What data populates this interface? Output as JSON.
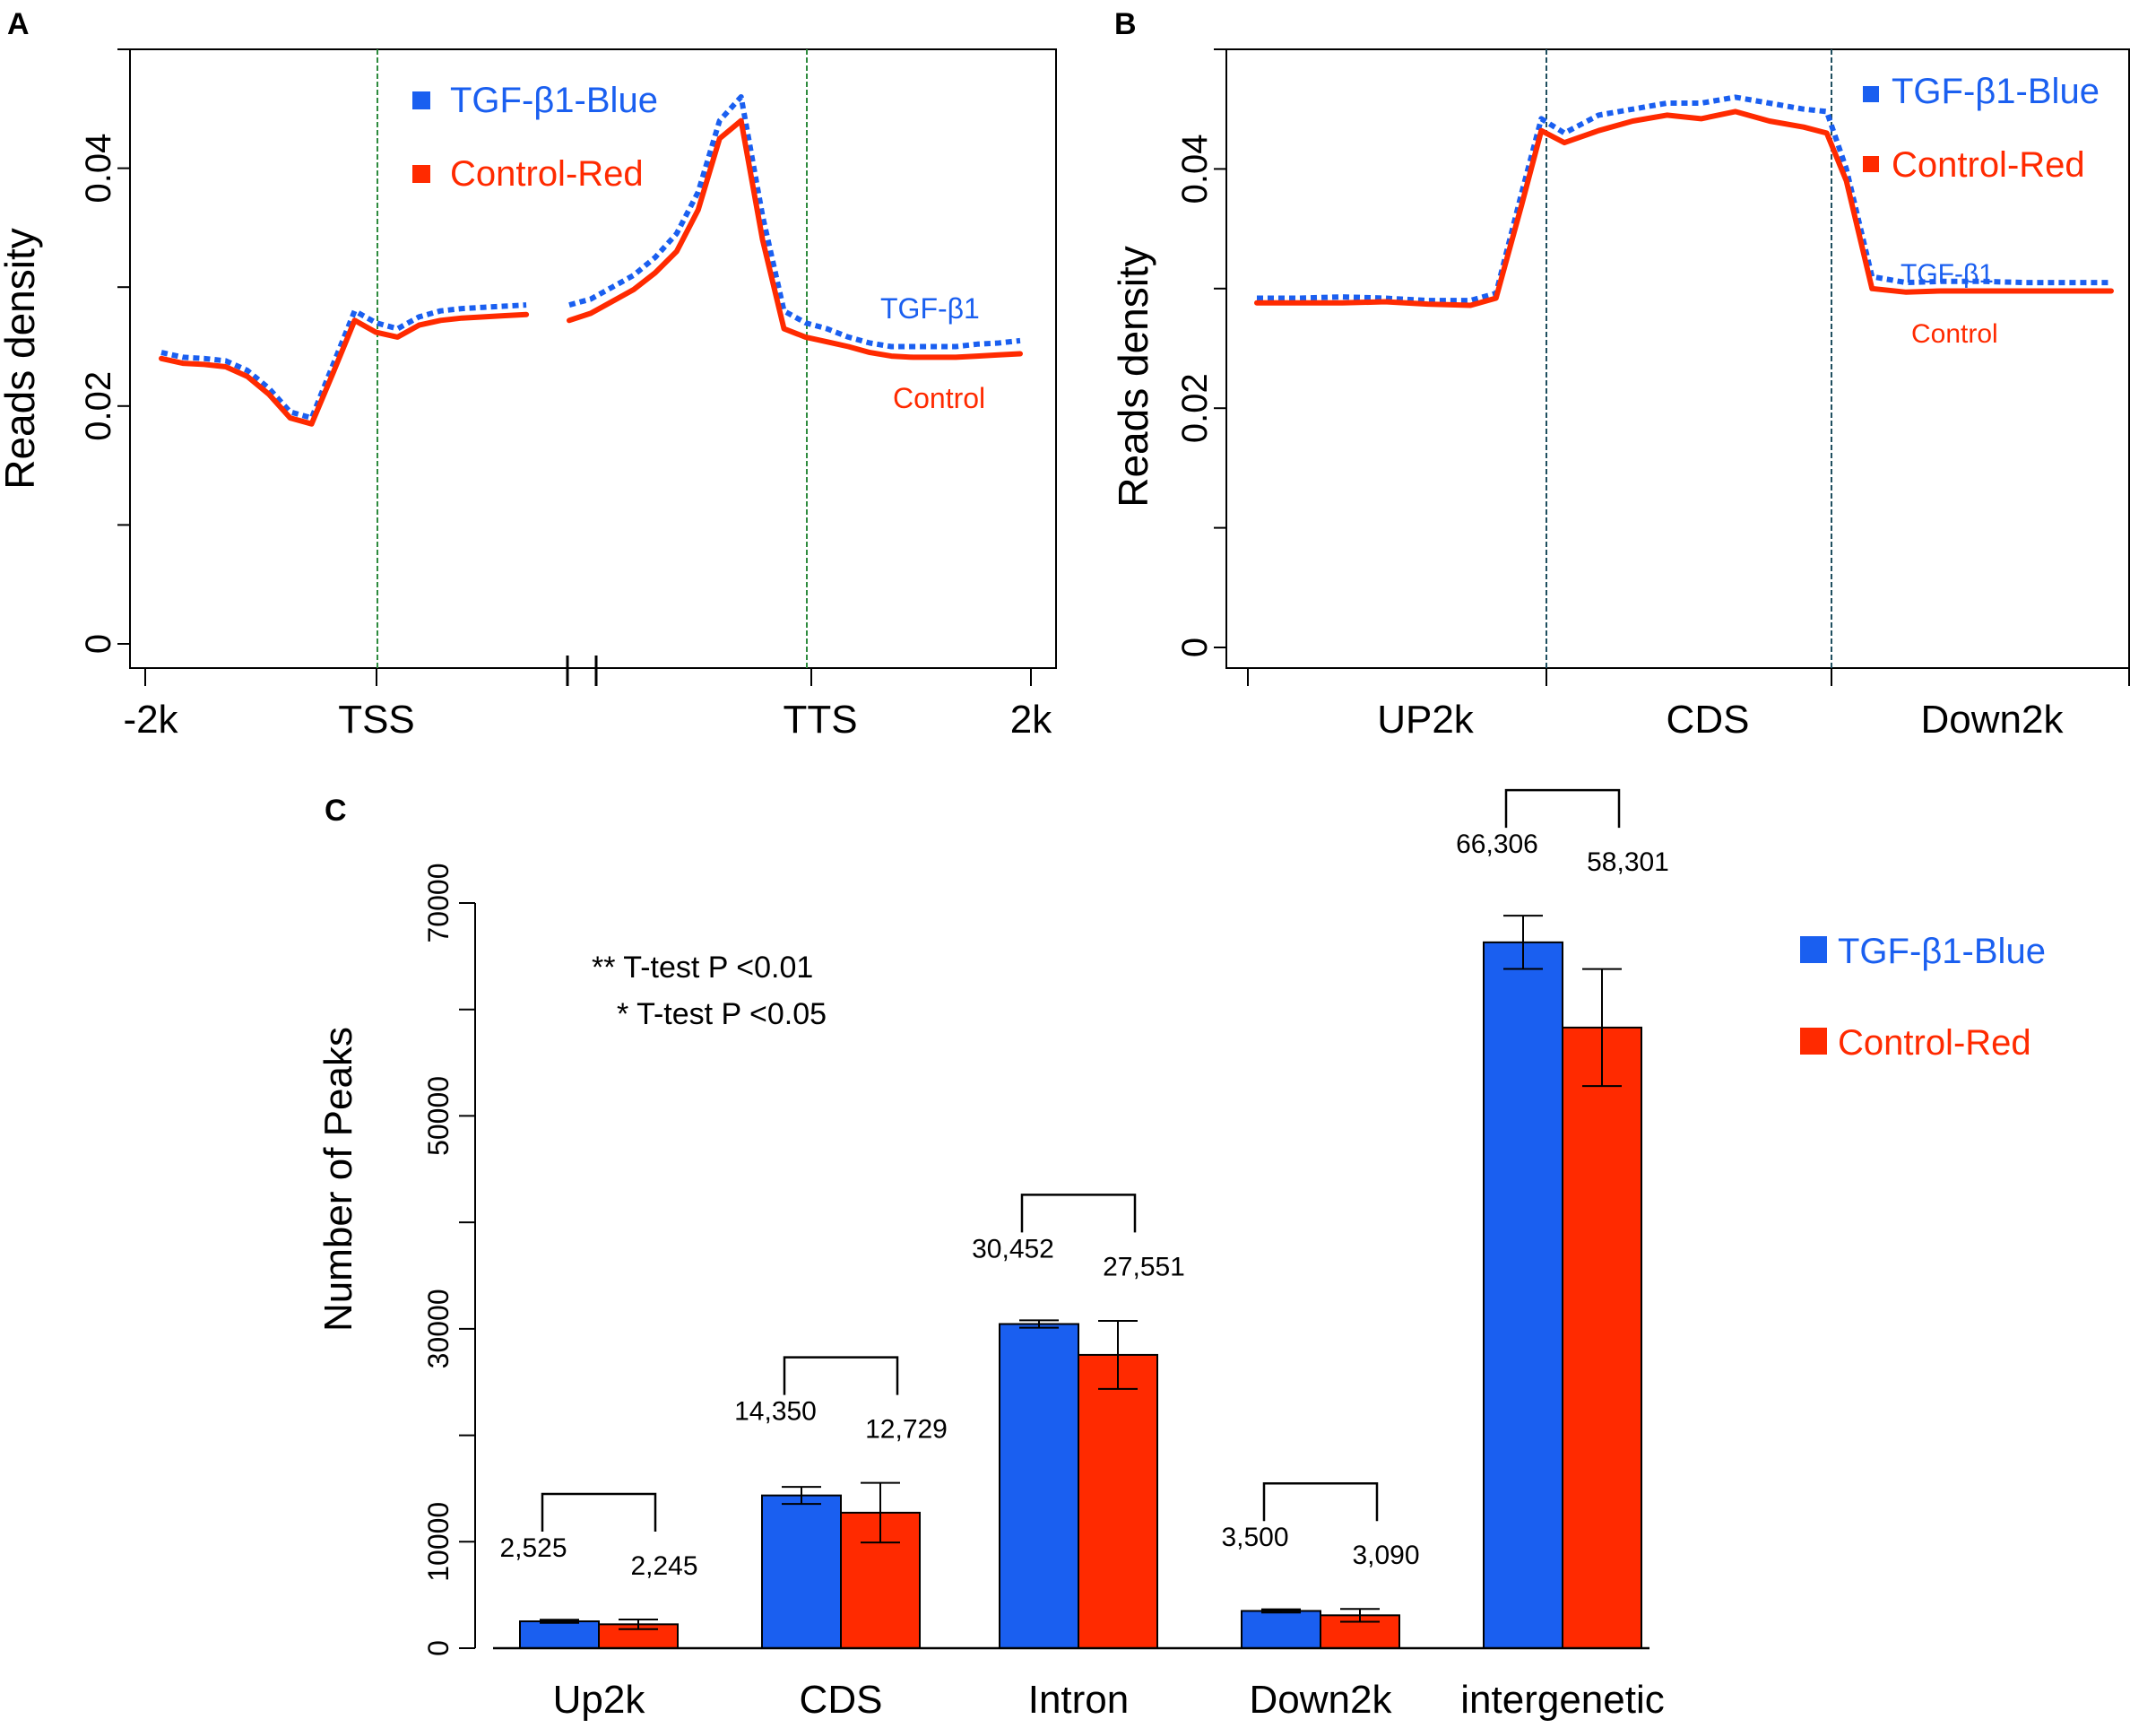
{
  "colors": {
    "blue": "#1a5ff0",
    "red": "#ff2a00",
    "green": "#2e8b3e",
    "axis": "#000000"
  },
  "chart_data": [
    {
      "panel": "A",
      "type": "line",
      "ylabel": "Reads density",
      "ylim": [
        0,
        0.05
      ],
      "yticks": [
        {
          "value": 0,
          "label": "0"
        },
        {
          "value": 0.02,
          "label": "0.02"
        },
        {
          "value": 0.04,
          "label": "0.04"
        }
      ],
      "xticks": [
        "-2k",
        "TSS",
        "TTS",
        "2k"
      ],
      "legend": [
        "TGF-β1-Blue",
        "Control-Red"
      ],
      "annotations": {
        "blue": "TGF-β1",
        "red": "Control"
      },
      "x": [
        0,
        2.5,
        5,
        7.5,
        10,
        12.5,
        15,
        17.5,
        20,
        22.5,
        25,
        27.5,
        30,
        32.5,
        35,
        37.5,
        40,
        42.5,
        45,
        47.5,
        50,
        52.5,
        55,
        57.5,
        60,
        62.5,
        65,
        67.5,
        70,
        72.5,
        75,
        77.5,
        80,
        82.5,
        85,
        87.5,
        90,
        92.5,
        95,
        97.5,
        100
      ],
      "series": [
        {
          "name": "TGF-β1-Blue",
          "style": "dotted",
          "values": [
            0.0245,
            0.0241,
            0.024,
            0.0238,
            0.023,
            0.0215,
            0.0195,
            0.019,
            0.0235,
            0.028,
            0.027,
            0.0265,
            0.0275,
            0.028,
            0.0282,
            0.0283,
            0.0284,
            0.0285,
            null,
            0.0285,
            0.029,
            0.03,
            0.031,
            0.0325,
            0.0345,
            0.038,
            0.044,
            0.046,
            0.036,
            0.028,
            0.027,
            0.0265,
            0.0258,
            0.0253,
            0.025,
            0.025,
            0.025,
            0.025,
            0.0252,
            0.0253,
            0.0255
          ]
        },
        {
          "name": "Control-Red",
          "style": "solid",
          "values": [
            0.024,
            0.0236,
            0.0235,
            0.0233,
            0.0225,
            0.021,
            0.019,
            0.0185,
            0.0228,
            0.0272,
            0.0262,
            0.0258,
            0.0268,
            0.0272,
            0.0274,
            0.0275,
            0.0276,
            0.0277,
            null,
            0.0272,
            0.0278,
            0.0288,
            0.0298,
            0.0312,
            0.033,
            0.0365,
            0.0425,
            0.044,
            0.034,
            0.0265,
            0.0258,
            0.0254,
            0.025,
            0.0245,
            0.0242,
            0.0241,
            0.0241,
            0.0241,
            0.0242,
            0.0243,
            0.0244
          ]
        }
      ]
    },
    {
      "panel": "B",
      "type": "line",
      "ylabel": "Reads density",
      "ylim": [
        0,
        0.05
      ],
      "yticks": [
        {
          "value": 0,
          "label": "0"
        },
        {
          "value": 0.02,
          "label": "0.02"
        },
        {
          "value": 0.04,
          "label": "0.04"
        }
      ],
      "xticks": [
        "UP2k",
        "CDS",
        "Down2k"
      ],
      "legend": [
        "TGF-β1-Blue",
        "Control-Red"
      ],
      "annotations": {
        "blue": "TGF-β1",
        "red": "Control"
      },
      "x": [
        0,
        5,
        10,
        15,
        20,
        25,
        28,
        31,
        33.3,
        36,
        40,
        44,
        48,
        52,
        56,
        60,
        64,
        66.7,
        69,
        72,
        76,
        80,
        85,
        90,
        95,
        100
      ],
      "series": [
        {
          "name": "TGF-β1-Blue",
          "style": "dotted",
          "values": [
            0.0292,
            0.0292,
            0.0293,
            0.0292,
            0.029,
            0.029,
            0.0296,
            0.038,
            0.0442,
            0.043,
            0.0445,
            0.045,
            0.0455,
            0.0455,
            0.046,
            0.0455,
            0.045,
            0.0448,
            0.04,
            0.031,
            0.0305,
            0.0306,
            0.0306,
            0.0305,
            0.0305,
            0.0305
          ]
        },
        {
          "name": "Control-Red",
          "style": "solid",
          "values": [
            0.0288,
            0.0288,
            0.0288,
            0.0289,
            0.0287,
            0.0286,
            0.0292,
            0.037,
            0.0432,
            0.0422,
            0.0432,
            0.044,
            0.0445,
            0.0442,
            0.0448,
            0.044,
            0.0435,
            0.043,
            0.039,
            0.03,
            0.0297,
            0.0298,
            0.0298,
            0.0298,
            0.0298,
            0.0298
          ]
        }
      ]
    },
    {
      "panel": "C",
      "type": "bar",
      "ylabel": "Number of Peaks",
      "ylim": [
        0,
        70000
      ],
      "yticks": [
        0,
        10000,
        30000,
        50000,
        70000
      ],
      "categories": [
        "Up2k",
        "CDS",
        "Intron",
        "Down2k",
        "intergenetic"
      ],
      "legend": [
        "TGF-β1-Blue",
        "Control-Red"
      ],
      "notes": [
        "**  T-test P <0.01",
        "* T-test P <0.05"
      ],
      "series": [
        {
          "name": "TGF-β1-Blue",
          "values": [
            2525,
            14350,
            30452,
            3500,
            66306
          ],
          "labels": [
            "2,525",
            "14,350",
            "30,452",
            "3,500",
            "66,306"
          ],
          "errors": [
            150,
            800,
            350,
            150,
            2500
          ]
        },
        {
          "name": "Control-Red",
          "values": [
            2245,
            12729,
            27551,
            3090,
            58301
          ],
          "labels": [
            "2,245",
            "12,729",
            "27,551",
            "3,090",
            "58,301"
          ],
          "errors": [
            450,
            2800,
            3200,
            600,
            5500
          ]
        }
      ]
    }
  ]
}
